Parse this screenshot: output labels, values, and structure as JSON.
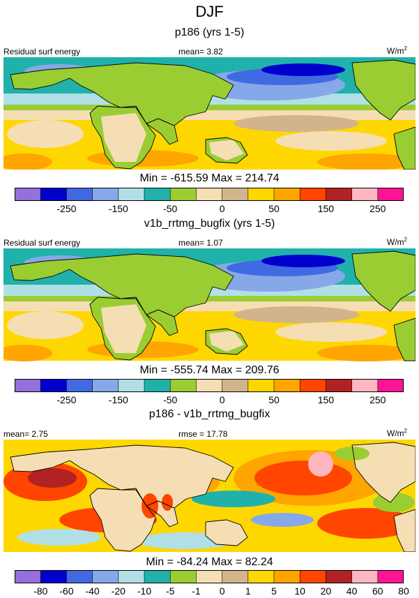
{
  "title": "DJF",
  "colors": {
    "palette": [
      "#9370db",
      "#0000cd",
      "#4169e1",
      "#87a8e8",
      "#b0e0e6",
      "#20b2aa",
      "#9acd32",
      "#f5deb3",
      "#d2b48c",
      "#ffd700",
      "#ffa500",
      "#ff4500",
      "#b22222",
      "#ffb6c1",
      "#ff1493"
    ],
    "land": "#9acd32",
    "coast": "#000000"
  },
  "panels": [
    {
      "title": "p186 (yrs 1-5)",
      "left_label": "Residual surf energy",
      "mid_label": "mean=   3.82",
      "units": "W/m",
      "units_sup": "2",
      "minmax": "Min = -615.59 Max = 214.74",
      "tick_labels": [
        "-250",
        "-150",
        "-50",
        "0",
        "50",
        "150",
        "250"
      ]
    },
    {
      "title": "v1b_rrtmg_bugfix (yrs 1-5)",
      "left_label": "Residual surf energy",
      "mid_label": "mean=   1.07",
      "units": "W/m",
      "units_sup": "2",
      "minmax": "Min = -555.74 Max = 209.76",
      "tick_labels": [
        "-250",
        "-150",
        "-50",
        "0",
        "50",
        "150",
        "250"
      ]
    },
    {
      "title": "p186 - v1b_rrtmg_bugfix",
      "left_label": "mean=   2.75",
      "mid_label": "rmse =  17.78",
      "units": "W/m",
      "units_sup": "2",
      "minmax": "Min = -84.24 Max =  82.24",
      "tick_labels": [
        "-80",
        "-60",
        "-40",
        "-20",
        "-10",
        "-5",
        "-1",
        "0",
        "1",
        "5",
        "10",
        "20",
        "40",
        "60",
        "80"
      ]
    }
  ]
}
